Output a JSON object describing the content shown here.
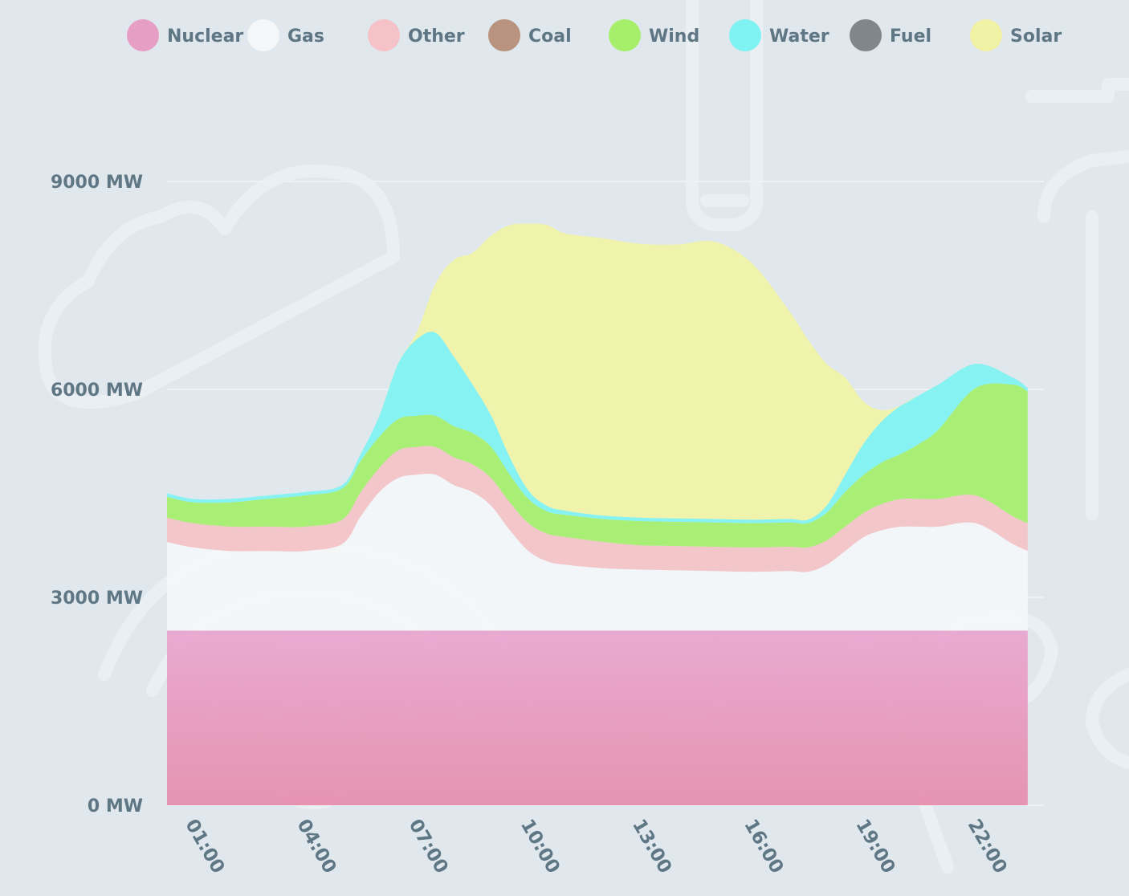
{
  "chart_data": {
    "type": "area",
    "stacked": true,
    "y_unit": "MW",
    "ylim": [
      0,
      10600
    ],
    "y_ticks": [
      {
        "value": 0,
        "label": "0 MW"
      },
      {
        "value": 3000,
        "label": "3000 MW"
      },
      {
        "value": 6000,
        "label": "6000 MW"
      },
      {
        "value": 9000,
        "label": "9000 MW"
      }
    ],
    "x_ticks": [
      "01:00",
      "04:00",
      "07:00",
      "10:00",
      "13:00",
      "16:00",
      "19:00",
      "22:00"
    ],
    "x_tick_hours": [
      1,
      4,
      7,
      10,
      13,
      16,
      19,
      22
    ],
    "grid": true,
    "legend_position": "top",
    "legend": [
      "Nuclear",
      "Gas",
      "Other",
      "Coal",
      "Wind",
      "Water",
      "Fuel",
      "Solar"
    ],
    "hours": [
      0.3,
      1,
      2,
      3,
      4,
      5,
      5.5,
      6,
      6.5,
      7,
      7.5,
      8,
      8.5,
      9,
      9.5,
      10,
      10.5,
      11,
      12,
      13,
      14,
      15,
      16,
      17,
      17.5,
      18,
      18.5,
      19,
      19.5,
      20,
      20.5,
      21,
      22,
      23,
      23.4
    ],
    "series": [
      {
        "name": "Nuclear",
        "color": "#e79ec5",
        "values": [
          2520,
          2520,
          2520,
          2520,
          2520,
          2520,
          2520,
          2520,
          2520,
          2520,
          2520,
          2520,
          2520,
          2520,
          2520,
          2520,
          2520,
          2520,
          2520,
          2520,
          2520,
          2520,
          2520,
          2520,
          2520,
          2520,
          2520,
          2520,
          2520,
          2520,
          2520,
          2520,
          2520,
          2520,
          2520
        ]
      },
      {
        "name": "Gas",
        "color": "#f4f6f8",
        "values": [
          1280,
          1200,
          1150,
          1150,
          1150,
          1250,
          1650,
          2000,
          2200,
          2250,
          2250,
          2100,
          2000,
          1800,
          1450,
          1150,
          1000,
          950,
          900,
          880,
          870,
          860,
          850,
          860,
          850,
          950,
          1150,
          1350,
          1450,
          1500,
          1500,
          1500,
          1550,
          1250,
          1150
        ]
      },
      {
        "name": "Other",
        "color": "#f4c2c7",
        "values": [
          350,
          350,
          350,
          350,
          350,
          350,
          350,
          350,
          400,
          400,
          400,
          400,
          400,
          400,
          400,
          400,
          400,
          400,
          380,
          350,
          350,
          350,
          350,
          350,
          350,
          350,
          350,
          350,
          380,
          400,
          400,
          400,
          400,
          400,
          400
        ]
      },
      {
        "name": "Coal",
        "color": "#b8937d",
        "values": [
          0,
          0,
          0,
          0,
          0,
          0,
          0,
          0,
          0,
          0,
          0,
          0,
          0,
          0,
          0,
          0,
          0,
          0,
          0,
          0,
          0,
          0,
          0,
          0,
          0,
          0,
          0,
          0,
          0,
          0,
          0,
          0,
          0,
          0,
          0
        ]
      },
      {
        "name": "Wind",
        "color": "#a5ef6a",
        "values": [
          300,
          300,
          350,
          400,
          450,
          450,
          450,
          450,
          450,
          450,
          450,
          450,
          450,
          450,
          400,
          350,
          320,
          320,
          330,
          350,
          350,
          350,
          350,
          350,
          350,
          400,
          500,
          550,
          600,
          650,
          800,
          1000,
          1550,
          1900,
          1900
        ]
      },
      {
        "name": "Water",
        "color": "#7ef3f2",
        "values": [
          50,
          50,
          50,
          50,
          50,
          50,
          100,
          300,
          800,
          1100,
          1200,
          1000,
          700,
          450,
          250,
          120,
          80,
          60,
          50,
          50,
          50,
          50,
          50,
          50,
          50,
          100,
          250,
          450,
          600,
          700,
          700,
          650,
          350,
          100,
          50
        ]
      },
      {
        "name": "Fuel",
        "color": "#7f878a",
        "values": [
          0,
          0,
          0,
          0,
          0,
          0,
          0,
          0,
          0,
          0,
          0,
          0,
          0,
          0,
          0,
          0,
          0,
          0,
          0,
          0,
          0,
          0,
          0,
          0,
          0,
          0,
          0,
          0,
          0,
          0,
          0,
          0,
          0,
          0,
          0
        ]
      },
      {
        "name": "Solar",
        "color": "#f0f3a5",
        "values": [
          0,
          0,
          0,
          0,
          0,
          0,
          0,
          0,
          0,
          100,
          700,
          1400,
          1900,
          2600,
          3350,
          3850,
          4050,
          4000,
          4000,
          3950,
          3950,
          4000,
          3700,
          3000,
          2600,
          2050,
          1400,
          600,
          150,
          0,
          0,
          0,
          0,
          0,
          0
        ]
      }
    ]
  }
}
